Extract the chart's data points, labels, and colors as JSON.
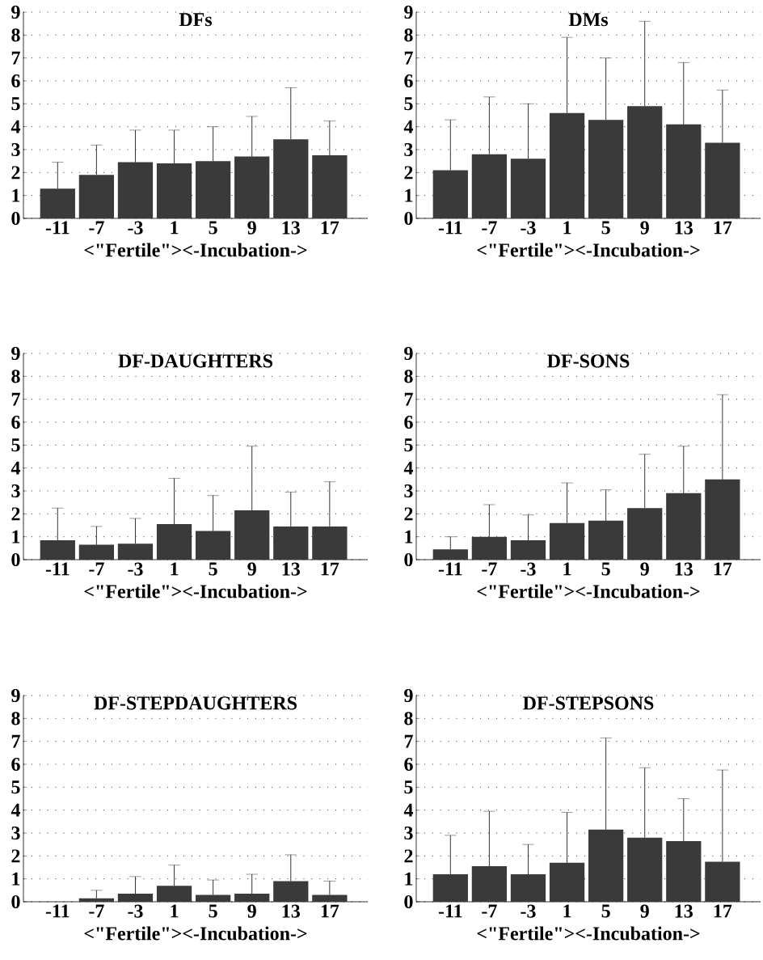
{
  "chart_data": [
    {
      "type": "bar",
      "title": "DFs",
      "xlabel": "<\"Fertile\"><-Incubation->",
      "categories": [
        "-11",
        "-7",
        "-3",
        "1",
        "5",
        "9",
        "13",
        "17"
      ],
      "color": "#3a3a3a",
      "values": [
        1.3,
        1.9,
        2.45,
        2.4,
        2.5,
        2.7,
        3.45,
        2.75
      ],
      "errors": [
        [
          1.3,
          2.45
        ],
        [
          1.9,
          3.2
        ],
        [
          2.45,
          3.85
        ],
        [
          2.4,
          3.85
        ],
        [
          2.5,
          4.0
        ],
        [
          2.7,
          4.45
        ],
        [
          3.45,
          5.7
        ],
        [
          2.75,
          4.25
        ]
      ],
      "ylim": [
        0,
        9
      ],
      "yticks": [
        0,
        1,
        2,
        3,
        4,
        5,
        6,
        7,
        8,
        9
      ],
      "grid": "y"
    },
    {
      "type": "bar",
      "title": "DMs",
      "xlabel": "<\"Fertile\"><-Incubation->",
      "categories": [
        "-11",
        "-7",
        "-3",
        "1",
        "5",
        "9",
        "13",
        "17"
      ],
      "color": "#3a3a3a",
      "values": [
        2.1,
        2.8,
        2.6,
        4.6,
        4.3,
        4.9,
        4.1,
        3.3
      ],
      "errors": [
        [
          2.1,
          4.3
        ],
        [
          2.8,
          5.3
        ],
        [
          2.6,
          5.0
        ],
        [
          4.6,
          7.9
        ],
        [
          4.3,
          7.0
        ],
        [
          4.9,
          8.6
        ],
        [
          4.1,
          6.8
        ],
        [
          3.3,
          5.6
        ]
      ],
      "ylim": [
        0,
        9
      ],
      "yticks": [
        0,
        1,
        2,
        3,
        4,
        5,
        6,
        7,
        8,
        9
      ],
      "grid": "y"
    },
    {
      "type": "bar",
      "title": "DF-DAUGHTERS",
      "xlabel": "<\"Fertile\"><-Incubation->",
      "categories": [
        "-11",
        "-7",
        "-3",
        "1",
        "5",
        "9",
        "13",
        "17"
      ],
      "color": "#3a3a3a",
      "values": [
        0.85,
        0.65,
        0.7,
        1.55,
        1.25,
        2.15,
        1.45,
        1.45
      ],
      "errors": [
        [
          0.85,
          2.25
        ],
        [
          0.65,
          1.45
        ],
        [
          0.7,
          1.8
        ],
        [
          1.55,
          3.55
        ],
        [
          1.25,
          2.8
        ],
        [
          2.15,
          4.95
        ],
        [
          1.45,
          2.95
        ],
        [
          1.45,
          3.4
        ]
      ],
      "ylim": [
        0,
        9
      ],
      "yticks": [
        0,
        1,
        2,
        3,
        4,
        5,
        6,
        7,
        8,
        9
      ],
      "grid": "y"
    },
    {
      "type": "bar",
      "title": "DF-SONS",
      "xlabel": "<\"Fertile\"><-Incubation->",
      "categories": [
        "-11",
        "-7",
        "-3",
        "1",
        "5",
        "9",
        "13",
        "17"
      ],
      "color": "#3a3a3a",
      "values": [
        0.45,
        1.0,
        0.85,
        1.6,
        1.7,
        2.25,
        2.9,
        3.5
      ],
      "errors": [
        [
          0.45,
          1.0
        ],
        [
          1.0,
          2.4
        ],
        [
          0.85,
          1.95
        ],
        [
          1.6,
          3.35
        ],
        [
          1.7,
          3.05
        ],
        [
          2.25,
          4.6
        ],
        [
          2.9,
          4.95
        ],
        [
          3.5,
          7.2
        ]
      ],
      "ylim": [
        0,
        9
      ],
      "yticks": [
        0,
        1,
        2,
        3,
        4,
        5,
        6,
        7,
        8,
        9
      ],
      "grid": "y"
    },
    {
      "type": "bar",
      "title": "DF-STEPDAUGHTERS",
      "xlabel": "<\"Fertile\"><-Incubation->",
      "categories": [
        "-11",
        "-7",
        "-3",
        "1",
        "5",
        "9",
        "13",
        "17"
      ],
      "color": "#3a3a3a",
      "values": [
        0,
        0.15,
        0.35,
        0.7,
        0.3,
        0.35,
        0.9,
        0.3
      ],
      "errors": [
        null,
        [
          0.15,
          0.5
        ],
        [
          0.35,
          1.1
        ],
        [
          0.7,
          1.6
        ],
        [
          0.3,
          0.95
        ],
        [
          0.35,
          1.2
        ],
        [
          0.9,
          2.05
        ],
        [
          0.3,
          0.9
        ]
      ],
      "ylim": [
        0,
        9
      ],
      "yticks": [
        0,
        1,
        2,
        3,
        4,
        5,
        6,
        7,
        8,
        9
      ],
      "grid": "y"
    },
    {
      "type": "bar",
      "title": "DF-STEPSONS",
      "xlabel": "<\"Fertile\"><-Incubation->",
      "categories": [
        "-11",
        "-7",
        "-3",
        "1",
        "5",
        "9",
        "13",
        "17"
      ],
      "color": "#3a3a3a",
      "values": [
        1.2,
        1.55,
        1.2,
        1.7,
        3.15,
        2.8,
        2.65,
        1.75
      ],
      "errors": [
        [
          1.2,
          2.9
        ],
        [
          1.55,
          3.95
        ],
        [
          1.2,
          2.5
        ],
        [
          1.7,
          3.9
        ],
        [
          3.15,
          7.15
        ],
        [
          2.8,
          5.85
        ],
        [
          2.65,
          4.5
        ],
        [
          1.75,
          5.75
        ]
      ],
      "ylim": [
        0,
        9
      ],
      "yticks": [
        0,
        1,
        2,
        3,
        4,
        5,
        6,
        7,
        8,
        9
      ],
      "grid": "y"
    }
  ]
}
